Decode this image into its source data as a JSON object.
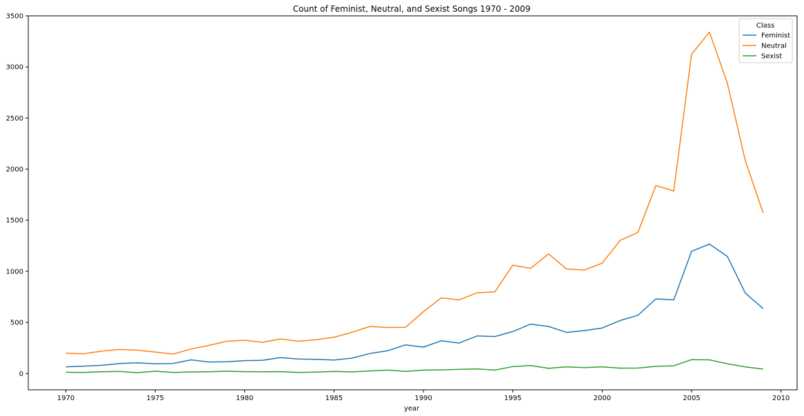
{
  "chart_data": {
    "type": "line",
    "title": "Count of Feminist, Neutral, and Sexist Songs 1970 - 2009",
    "xlabel": "year",
    "ylabel": "",
    "xlim": [
      1967.9,
      2010.9
    ],
    "ylim": [
      -160,
      3500
    ],
    "x_ticks": [
      1970,
      1975,
      1980,
      1985,
      1990,
      1995,
      2000,
      2005,
      2010
    ],
    "y_ticks": [
      0,
      500,
      1000,
      1500,
      2000,
      2500,
      3000,
      3500
    ],
    "grid": false,
    "legend": {
      "title": "Class",
      "position": "top-right"
    },
    "x": [
      1970,
      1971,
      1972,
      1973,
      1974,
      1975,
      1976,
      1977,
      1978,
      1979,
      1980,
      1981,
      1982,
      1983,
      1984,
      1985,
      1986,
      1987,
      1988,
      1989,
      1990,
      1991,
      1992,
      1993,
      1994,
      1995,
      1996,
      1997,
      1998,
      1999,
      2000,
      2001,
      2002,
      2003,
      2004,
      2005,
      2006,
      2007,
      2008,
      2009
    ],
    "series": [
      {
        "name": "Feminist",
        "color": "#1f77b4",
        "values": [
          65,
          72,
          80,
          97,
          105,
          95,
          98,
          133,
          112,
          115,
          126,
          129,
          155,
          142,
          138,
          132,
          150,
          195,
          222,
          280,
          258,
          320,
          298,
          367,
          362,
          410,
          483,
          460,
          402,
          420,
          445,
          518,
          570,
          730,
          720,
          1196,
          1266,
          1145,
          788,
          635
        ]
      },
      {
        "name": "Neutral",
        "color": "#ff7f0e",
        "values": [
          198,
          193,
          218,
          235,
          228,
          210,
          190,
          240,
          275,
          315,
          325,
          305,
          338,
          315,
          330,
          355,
          402,
          460,
          450,
          452,
          605,
          740,
          720,
          790,
          800,
          1060,
          1030,
          1170,
          1023,
          1012,
          1080,
          1302,
          1380,
          1840,
          1785,
          3125,
          3340,
          2840,
          2085,
          1570
        ]
      },
      {
        "name": "Sexist",
        "color": "#2ca02c",
        "values": [
          12,
          10,
          17,
          20,
          8,
          22,
          10,
          15,
          17,
          22,
          18,
          17,
          18,
          10,
          13,
          20,
          15,
          25,
          33,
          20,
          33,
          35,
          40,
          45,
          33,
          68,
          78,
          50,
          65,
          58,
          65,
          52,
          53,
          70,
          75,
          135,
          133,
          95,
          65,
          43
        ]
      }
    ]
  }
}
